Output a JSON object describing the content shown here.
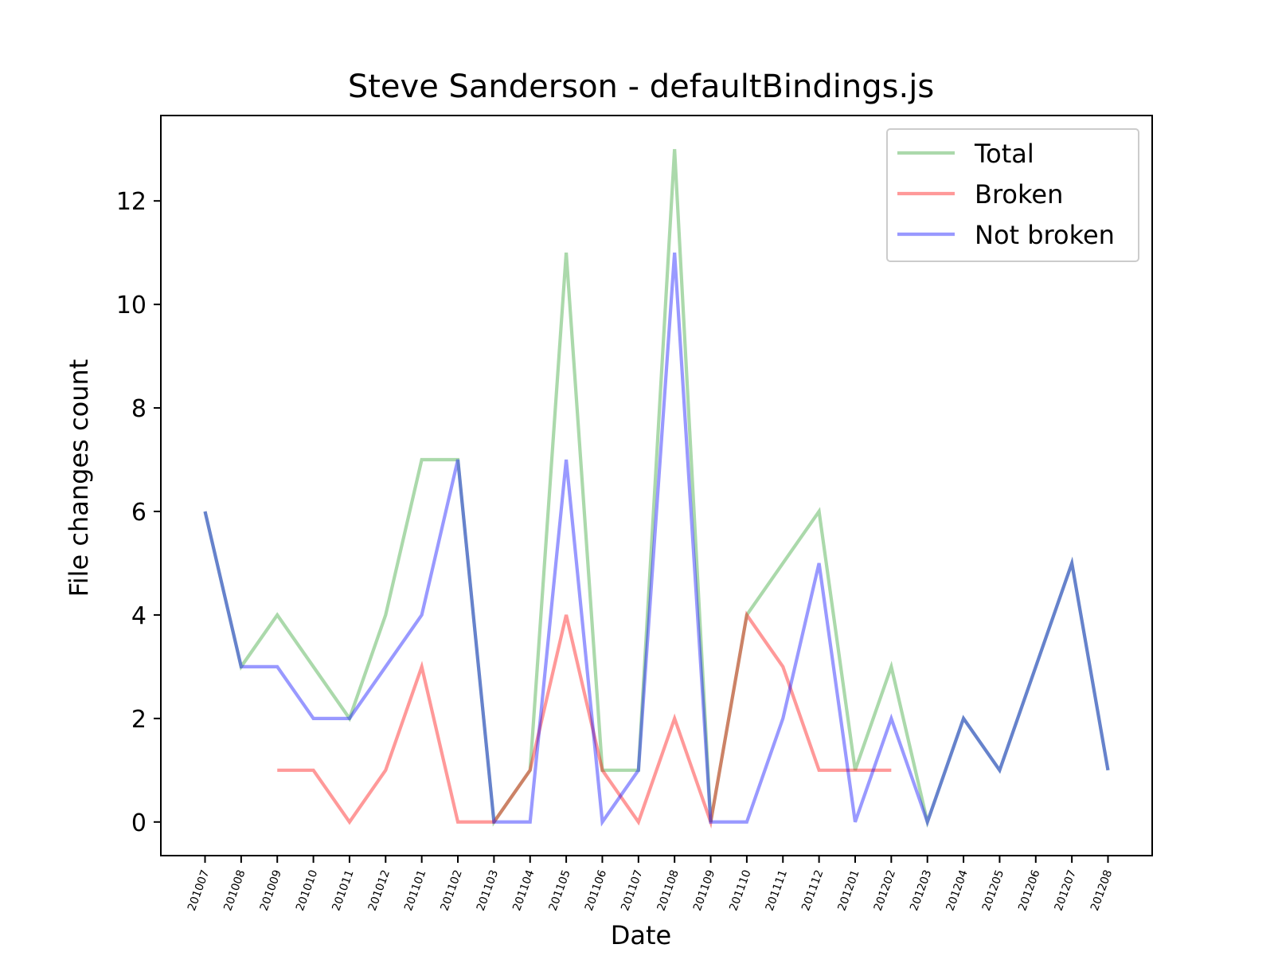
{
  "chart_data": {
    "type": "line",
    "title": "Steve Sanderson - defaultBindings.js",
    "xlabel": "Date",
    "ylabel": "File changes count",
    "categories": [
      "201007",
      "201008",
      "201009",
      "201010",
      "201011",
      "201012",
      "201101",
      "201102",
      "201103",
      "201104",
      "201105",
      "201106",
      "201107",
      "201108",
      "201109",
      "201110",
      "201111",
      "201112",
      "201201",
      "201202",
      "201203",
      "201204",
      "201205",
      "201206",
      "201207",
      "201208"
    ],
    "yticks": [
      0,
      2,
      4,
      6,
      8,
      10,
      12
    ],
    "ylim": [
      -0.65,
      13.65
    ],
    "grid": false,
    "legend_position": "top-right",
    "series": [
      {
        "name": "Total",
        "color": "#2ca02c",
        "values": [
          6,
          3,
          4,
          3,
          2,
          4,
          7,
          7,
          0,
          1,
          11,
          1,
          1,
          13,
          0,
          4,
          5,
          6,
          1,
          3,
          0,
          2,
          1,
          3,
          5,
          1
        ]
      },
      {
        "name": "Broken",
        "color": "#ff0000",
        "values": [
          null,
          null,
          1,
          1,
          0,
          1,
          3,
          0,
          0,
          1,
          4,
          1,
          0,
          2,
          0,
          4,
          3,
          1,
          1,
          1,
          null,
          null,
          null,
          null,
          null,
          null
        ]
      },
      {
        "name": "Not broken",
        "color": "#0000ff",
        "values": [
          6,
          3,
          3,
          2,
          2,
          3,
          4,
          7,
          0,
          0,
          7,
          0,
          1,
          11,
          0,
          0,
          2,
          5,
          0,
          2,
          0,
          2,
          1,
          3,
          5,
          1
        ]
      }
    ]
  }
}
